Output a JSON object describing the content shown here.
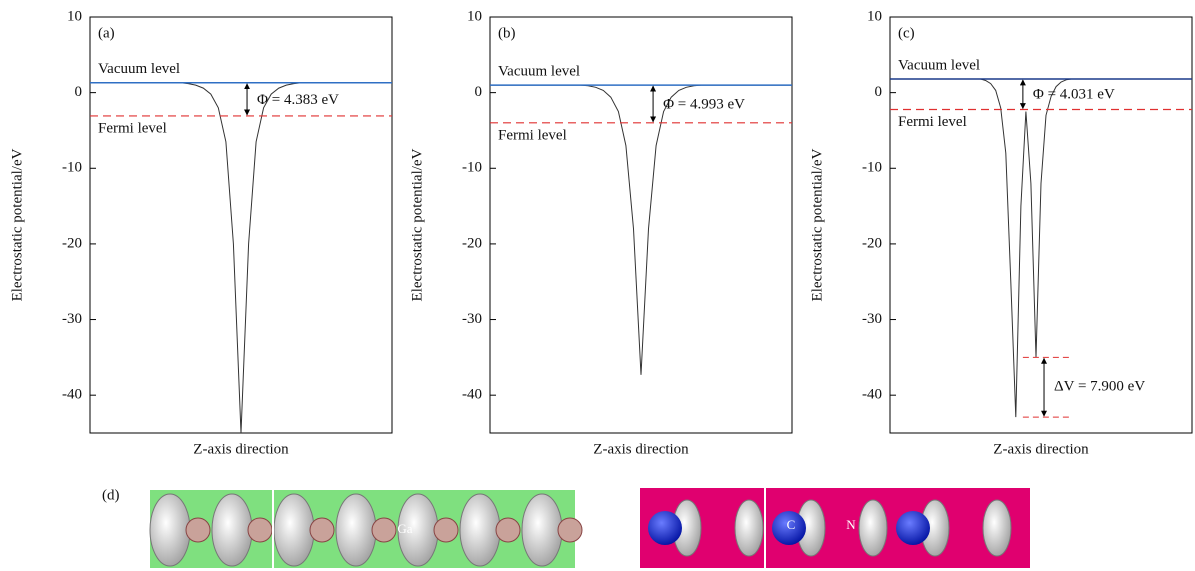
{
  "chart_data": [
    {
      "type": "line",
      "panel_label": "(a)",
      "ylabel": "Electrostatic potential/eV",
      "xlabel": "Z-axis direction",
      "ylim": [
        -45,
        10
      ],
      "yticks": [
        10,
        0,
        -10,
        -20,
        -30,
        -40
      ],
      "color": "#333333",
      "values": [
        1.3,
        1.3,
        1.3,
        1.3,
        1.3,
        1.3,
        1.3,
        1.3,
        1.3,
        1.3,
        1.3,
        1.3,
        1.3,
        1.2,
        1.0,
        0.6,
        -0.2,
        -2.0,
        -6.5,
        -20.0,
        -45.0,
        -20.0,
        -6.5,
        -2.0,
        -0.2,
        0.6,
        1.0,
        1.2,
        1.3,
        1.3,
        1.3,
        1.3,
        1.3,
        1.3,
        1.3,
        1.3,
        1.3,
        1.3,
        1.3,
        1.3,
        1.3
      ],
      "vacuum_level": 1.3,
      "vacuum_label": "Vacuum level",
      "vacuum_color": "#2f6fc4",
      "fermi_level": -3.08,
      "fermi_label": "Fermi level",
      "fermi_color": "#e03030",
      "phi_label": "Φ = 4.383 eV"
    },
    {
      "type": "line",
      "panel_label": "(b)",
      "ylabel": "Electrostatic potential/eV",
      "xlabel": "Z-axis direction",
      "ylim": [
        -45,
        10
      ],
      "yticks": [
        10,
        0,
        -10,
        -20,
        -30,
        -40
      ],
      "color": "#333333",
      "values": [
        1.0,
        1.0,
        1.0,
        1.0,
        1.0,
        1.0,
        1.0,
        1.0,
        1.0,
        1.0,
        1.0,
        1.0,
        1.0,
        0.9,
        0.7,
        0.3,
        -0.6,
        -2.5,
        -7.0,
        -18.0,
        -37.3,
        -18.0,
        -7.0,
        -2.5,
        -0.6,
        0.3,
        0.7,
        0.9,
        1.0,
        1.0,
        1.0,
        1.0,
        1.0,
        1.0,
        1.0,
        1.0,
        1.0,
        1.0,
        1.0,
        1.0,
        1.0
      ],
      "vacuum_level": 1.0,
      "vacuum_label": "Vacuum level",
      "vacuum_color": "#2f6fc4",
      "fermi_level": -3.99,
      "fermi_label": "Fermi level",
      "fermi_color": "#e03030",
      "phi_label": "Φ = 4.993 eV"
    },
    {
      "type": "line",
      "panel_label": "(c)",
      "ylabel": "Electrostatic potential/eV",
      "xlabel": "Z-axis direction",
      "ylim": [
        -45,
        10
      ],
      "yticks": [
        10,
        0,
        -10,
        -20,
        -30,
        -40
      ],
      "color": "#333333",
      "values": [
        1.8,
        1.8,
        1.8,
        1.8,
        1.8,
        1.8,
        1.8,
        1.8,
        1.8,
        1.8,
        1.8,
        1.8,
        1.8,
        1.8,
        1.8,
        1.8,
        1.8,
        1.8,
        1.8,
        1.6,
        1.2,
        0.3,
        -2.0,
        -8.0,
        -25.0,
        -42.9,
        -15.0,
        -2.5,
        -12.0,
        -35.0,
        -12.0,
        -3.0,
        -0.5,
        0.8,
        1.4,
        1.7,
        1.8,
        1.8,
        1.8,
        1.8,
        1.8,
        1.8,
        1.8,
        1.8,
        1.8,
        1.8,
        1.8,
        1.8,
        1.8,
        1.8,
        1.8,
        1.8,
        1.8,
        1.8,
        1.8,
        1.8,
        1.8,
        1.8,
        1.8,
        1.8,
        1.8
      ],
      "vacuum_level": 1.8,
      "vacuum_label": "Vacuum level",
      "vacuum_color": "#1a3a8a",
      "fermi_level": -2.23,
      "fermi_label": "Fermi level",
      "fermi_color": "#e03030",
      "phi_label": "Φ = 4.031 eV",
      "delta_v_levels": [
        -35.0,
        -42.9
      ],
      "delta_v_label": "ΔV = 7.900 eV"
    }
  ],
  "panel_d": {
    "label": "(d)",
    "atom_labels": [
      "Ga",
      "C",
      "N"
    ]
  }
}
